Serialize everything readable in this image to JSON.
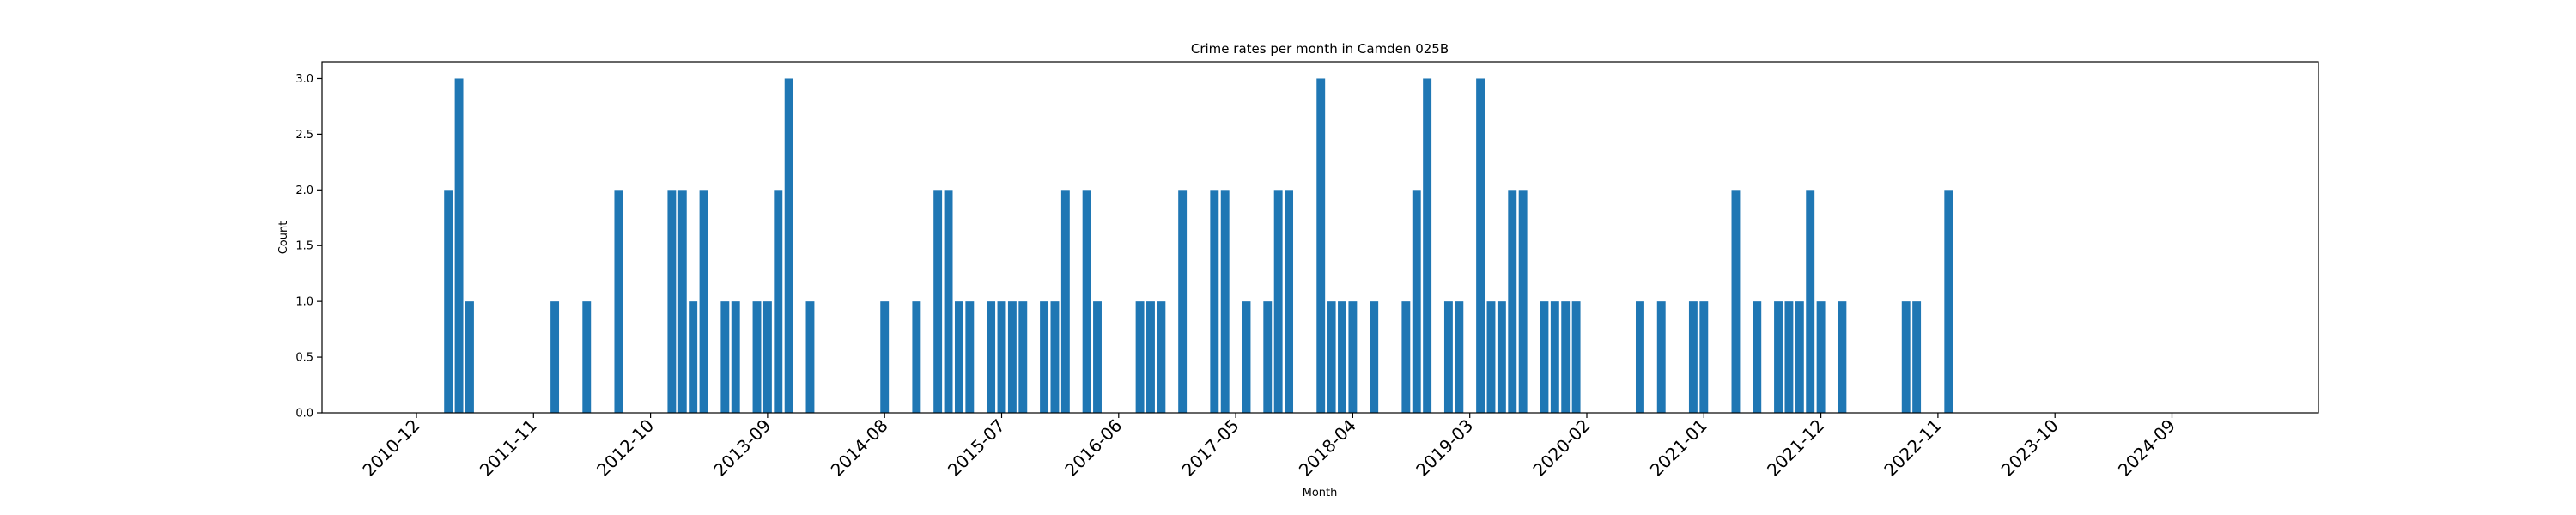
{
  "chart_data": {
    "type": "bar",
    "title": "Crime rates per month in Camden 025B",
    "xlabel": "Month",
    "ylabel": "Count",
    "ylim": [
      0,
      3.15
    ],
    "y_ticks": [
      "0.0",
      "0.5",
      "1.0",
      "1.5",
      "2.0",
      "2.5",
      "3.0"
    ],
    "x_tick_labels": [
      "2010-12",
      "2011-11",
      "2012-10",
      "2013-09",
      "2014-08",
      "2015-07",
      "2016-06",
      "2017-05",
      "2018-04",
      "2019-03",
      "2020-02",
      "2021-01",
      "2021-12",
      "2022-11",
      "2023-10",
      "2024-09"
    ],
    "bar_color": "#1f77b4",
    "grid": false,
    "legend": "none",
    "x": [
      "2011-03",
      "2011-04",
      "2011-05",
      "2012-01",
      "2012-04",
      "2012-07",
      "2012-12",
      "2013-01",
      "2013-02",
      "2013-03",
      "2013-05",
      "2013-06",
      "2013-08",
      "2013-09",
      "2013-10",
      "2013-11",
      "2014-01",
      "2014-08",
      "2014-11",
      "2015-01",
      "2015-02",
      "2015-03",
      "2015-04",
      "2015-06",
      "2015-07",
      "2015-08",
      "2015-09",
      "2015-11",
      "2015-12",
      "2016-01",
      "2016-03",
      "2016-04",
      "2016-08",
      "2016-09",
      "2016-10",
      "2016-12",
      "2017-03",
      "2017-04",
      "2017-06",
      "2017-08",
      "2017-09",
      "2017-10",
      "2018-01",
      "2018-02",
      "2018-03",
      "2018-04",
      "2018-06",
      "2018-09",
      "2018-10",
      "2018-11",
      "2019-01",
      "2019-02",
      "2019-04",
      "2019-05",
      "2019-06",
      "2019-07",
      "2019-08",
      "2019-10",
      "2019-11",
      "2019-12",
      "2020-01",
      "2020-07",
      "2020-09",
      "2020-12",
      "2021-01",
      "2021-04",
      "2021-06",
      "2021-08",
      "2021-09",
      "2021-10",
      "2021-11",
      "2021-12",
      "2022-02",
      "2022-08",
      "2022-09",
      "2022-12"
    ],
    "values": [
      2,
      3,
      1,
      1,
      1,
      2,
      2,
      2,
      1,
      2,
      1,
      1,
      1,
      1,
      2,
      3,
      1,
      1,
      1,
      2,
      2,
      1,
      1,
      1,
      1,
      1,
      1,
      1,
      1,
      2,
      2,
      1,
      1,
      1,
      1,
      2,
      2,
      2,
      1,
      1,
      2,
      2,
      3,
      1,
      1,
      1,
      1,
      1,
      2,
      3,
      1,
      1,
      3,
      1,
      1,
      2,
      2,
      1,
      1,
      1,
      1,
      1,
      1,
      1,
      1,
      2,
      1,
      1,
      1,
      1,
      2,
      1,
      1,
      1,
      1,
      2
    ]
  }
}
